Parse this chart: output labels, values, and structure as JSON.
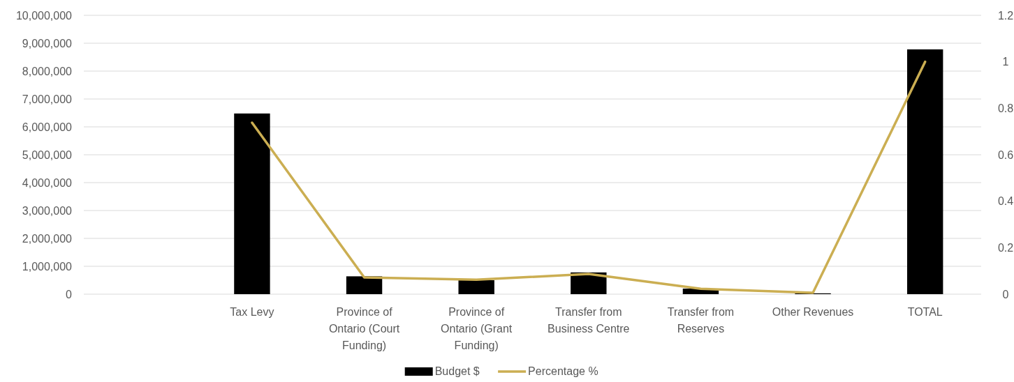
{
  "chart_data": {
    "type": "bar",
    "categories": [
      null,
      "Tax Levy",
      "Province of Ontario (Court Funding)",
      "Province of Ontario (Grant Funding)",
      "Transfer from Business Centre",
      "Transfer from Reserves",
      "Other Revenues",
      "TOTAL"
    ],
    "series": [
      {
        "name": "Budget  $",
        "color": "#000000",
        "values": [
          null,
          6480000,
          640000,
          500000,
          780000,
          200000,
          30000,
          8780000
        ]
      },
      {
        "name": "Percentage %",
        "type": "line",
        "axis": "y2",
        "color": "#cbae52",
        "values": [
          null,
          0.738,
          0.072,
          0.062,
          0.087,
          0.023,
          0.006,
          1.0
        ]
      }
    ],
    "ylim": [
      0,
      10000000
    ],
    "yticks": [
      {
        "value": 0,
        "label": "0"
      },
      {
        "value": 1000000,
        "label": "1,000,000"
      },
      {
        "value": 2000000,
        "label": "2,000,000"
      },
      {
        "value": 3000000,
        "label": "3,000,000"
      },
      {
        "value": 4000000,
        "label": "4,000,000"
      },
      {
        "value": 5000000,
        "label": "5,000,000"
      },
      {
        "value": 6000000,
        "label": "6,000,000"
      },
      {
        "value": 7000000,
        "label": "7,000,000"
      },
      {
        "value": 8000000,
        "label": "8,000,000"
      },
      {
        "value": 9000000,
        "label": "9,000,000"
      },
      {
        "value": 10000000,
        "label": "10,000,000"
      }
    ],
    "y2lim": [
      0,
      1.2
    ],
    "y2ticks": [
      0,
      0.2,
      0.4,
      0.6,
      0.8,
      1,
      1.2
    ],
    "grid": "y",
    "legend": "bottom",
    "marker": "none",
    "line_style": "solid"
  }
}
